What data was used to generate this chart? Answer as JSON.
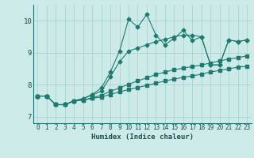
{
  "xlabel": "Humidex (Indice chaleur)",
  "bg_color": "#cceae8",
  "grid_color": "#aad4d0",
  "line_color": "#1e7a70",
  "xlim": [
    -0.5,
    23.5
  ],
  "ylim": [
    6.8,
    10.5
  ],
  "xticks": [
    0,
    1,
    2,
    3,
    4,
    5,
    6,
    7,
    8,
    9,
    10,
    11,
    12,
    13,
    14,
    15,
    16,
    17,
    18,
    19,
    20,
    21,
    22,
    23
  ],
  "yticks": [
    7,
    8,
    9,
    10
  ],
  "series": [
    [
      7.65,
      7.65,
      7.38,
      7.38,
      7.5,
      7.57,
      7.7,
      7.9,
      8.4,
      9.05,
      10.05,
      9.8,
      10.2,
      9.55,
      9.25,
      9.45,
      9.7,
      9.38,
      9.5,
      8.62,
      8.62,
      9.4,
      9.35,
      9.4
    ],
    [
      7.65,
      7.65,
      7.38,
      7.38,
      7.5,
      7.57,
      7.68,
      7.8,
      8.25,
      8.72,
      9.05,
      9.15,
      9.25,
      9.35,
      9.42,
      9.5,
      9.55,
      9.55,
      9.5,
      8.62,
      8.62,
      9.4,
      9.35,
      9.4
    ],
    [
      7.65,
      7.65,
      7.38,
      7.38,
      7.5,
      7.52,
      7.6,
      7.67,
      7.8,
      7.9,
      8.02,
      8.12,
      8.22,
      8.32,
      8.4,
      8.47,
      8.52,
      8.57,
      8.62,
      8.68,
      8.75,
      8.8,
      8.85,
      8.9
    ],
    [
      7.65,
      7.65,
      7.38,
      7.38,
      7.5,
      7.52,
      7.58,
      7.62,
      7.7,
      7.78,
      7.85,
      7.92,
      7.98,
      8.05,
      8.12,
      8.18,
      8.23,
      8.28,
      8.33,
      8.4,
      8.45,
      8.5,
      8.55,
      8.58
    ]
  ]
}
